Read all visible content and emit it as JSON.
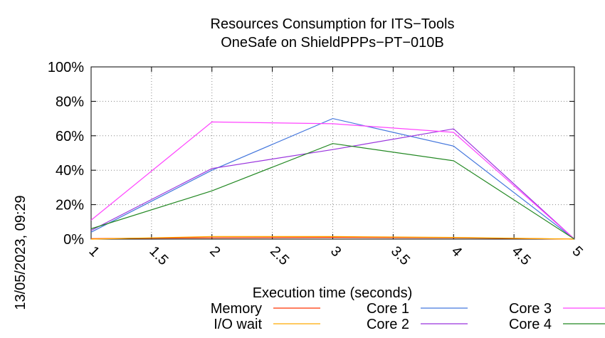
{
  "chart_data": {
    "type": "line",
    "title_line1": "Resources Consumption for ITS−Tools",
    "title_line2": "OneSafe on ShieldPPPs−PT−010B",
    "xlabel": "Execution time (seconds)",
    "ylabel": "",
    "side_label": "13/05/2023, 09:29",
    "xlim": [
      1,
      5
    ],
    "ylim": [
      0,
      100
    ],
    "x_ticks": [
      "1",
      "1.5",
      "2",
      "2.5",
      "3",
      "3.5",
      "4",
      "4.5",
      "5"
    ],
    "y_ticks": [
      "0%",
      "20%",
      "40%",
      "60%",
      "80%",
      "100%"
    ],
    "grid": true,
    "legend_position": "bottom",
    "series": [
      {
        "name": "Memory",
        "color": "#ff3300",
        "x": [
          1,
          2,
          3,
          4,
          5
        ],
        "y": [
          0.3,
          0.8,
          1.0,
          0.8,
          0
        ]
      },
      {
        "name": "I/O wait",
        "color": "#ffaa00",
        "x": [
          1,
          2,
          3,
          4,
          5
        ],
        "y": [
          0,
          1.5,
          1.5,
          1.0,
          0
        ]
      },
      {
        "name": "Core 1",
        "color": "#4477dd",
        "x": [
          1,
          2,
          3,
          4,
          5
        ],
        "y": [
          4,
          40,
          70,
          54,
          0
        ]
      },
      {
        "name": "Core 2",
        "color": "#9933dd",
        "x": [
          1,
          2,
          3,
          4,
          5
        ],
        "y": [
          5,
          41,
          52,
          64,
          0
        ]
      },
      {
        "name": "Core 3",
        "color": "#ff44ff",
        "x": [
          1,
          2,
          3,
          4,
          5
        ],
        "y": [
          11,
          68,
          67,
          62,
          0
        ]
      },
      {
        "name": "Core 4",
        "color": "#228822",
        "x": [
          1,
          2,
          3,
          4,
          5
        ],
        "y": [
          6,
          28,
          55.5,
          45.5,
          0
        ]
      }
    ]
  }
}
